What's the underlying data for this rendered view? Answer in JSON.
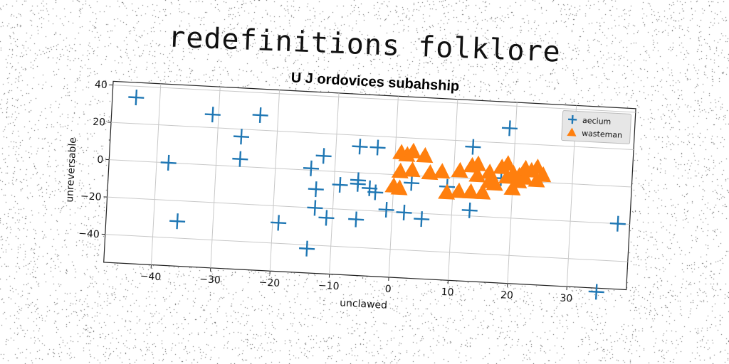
{
  "page": {
    "title": "redefinitions folklore"
  },
  "chart_data": {
    "type": "scatter",
    "title": "U J ordovices subahship",
    "xlabel": "unclawed",
    "ylabel": "unreversable",
    "xlim": [
      -48,
      40
    ],
    "ylim": [
      -55,
      42
    ],
    "xticks": [
      -40,
      -30,
      -20,
      -10,
      0,
      10,
      20,
      30
    ],
    "yticks": [
      -40,
      -20,
      0,
      20,
      40
    ],
    "grid": true,
    "legend": "top-right",
    "series": [
      {
        "name": "aecium",
        "marker": "plus",
        "color": "#1f77b4",
        "points": [
          [
            -44,
            34
          ],
          [
            -31,
            27
          ],
          [
            -23,
            28
          ],
          [
            -26,
            16
          ],
          [
            -26,
            4
          ],
          [
            -38,
            0
          ],
          [
            -36,
            -31
          ],
          [
            -19,
            -29
          ],
          [
            -14,
            1
          ],
          [
            -13,
            -10
          ],
          [
            -13,
            -20
          ],
          [
            -11,
            -25
          ],
          [
            -12,
            8
          ],
          [
            -9,
            -7
          ],
          [
            -14,
            -42
          ],
          [
            -6,
            14
          ],
          [
            -3,
            14
          ],
          [
            -6,
            -4
          ],
          [
            -6,
            -6
          ],
          [
            -4,
            -8
          ],
          [
            -3,
            -10
          ],
          [
            -6,
            -25
          ],
          [
            -1,
            -19
          ],
          [
            2,
            -20
          ],
          [
            5,
            -23
          ],
          [
            3,
            -4
          ],
          [
            9,
            -5
          ],
          [
            13,
            17
          ],
          [
            13,
            -17
          ],
          [
            19,
            28
          ],
          [
            18,
            1
          ],
          [
            38,
            -20
          ],
          [
            35,
            -57
          ]
        ]
      },
      {
        "name": "wasteman",
        "marker": "triangle",
        "color": "#ff7f0e",
        "points": [
          [
            1,
            12
          ],
          [
            2,
            11
          ],
          [
            3,
            13
          ],
          [
            5,
            11
          ],
          [
            1,
            2
          ],
          [
            3,
            3
          ],
          [
            6,
            2
          ],
          [
            8,
            3
          ],
          [
            0,
            -6
          ],
          [
            1,
            -7
          ],
          [
            9,
            -8
          ],
          [
            11,
            -7
          ],
          [
            13,
            -7
          ],
          [
            15,
            -7
          ],
          [
            11,
            4
          ],
          [
            13,
            7
          ],
          [
            14,
            8
          ],
          [
            14,
            2
          ],
          [
            16,
            4
          ],
          [
            18,
            7
          ],
          [
            19,
            9
          ],
          [
            20,
            4
          ],
          [
            17,
            -2
          ],
          [
            19,
            2
          ],
          [
            21,
            3
          ],
          [
            22,
            7
          ],
          [
            23,
            6
          ],
          [
            24,
            8
          ],
          [
            22,
            2
          ],
          [
            24,
            1
          ],
          [
            25,
            4
          ],
          [
            16,
            -1
          ],
          [
            20,
            -4
          ],
          [
            21,
            0
          ]
        ]
      }
    ]
  }
}
